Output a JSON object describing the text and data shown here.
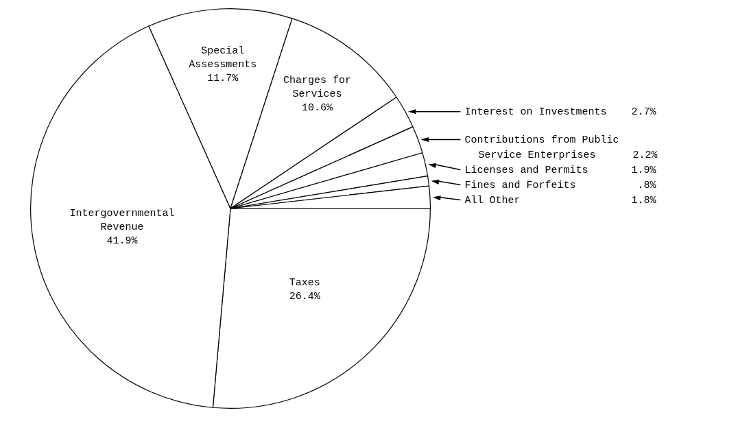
{
  "chart_data": {
    "type": "pie",
    "categories": [
      "Taxes",
      "Intergovernmental Revenue",
      "Special Assessments",
      "Charges for Services",
      "Interest on Investments",
      "Contributions from Public Service Enterprises",
      "Licenses and Permits",
      "Fines and Forfeits",
      "All Other"
    ],
    "values": [
      26.4,
      41.9,
      11.7,
      10.6,
      2.7,
      2.2,
      1.9,
      0.8,
      1.8
    ],
    "value_labels": [
      "26.4%",
      "41.9%",
      "11.7%",
      "10.6%",
      "2.7%",
      "2.2%",
      "1.9%",
      ".8%",
      "1.8%"
    ],
    "colors": [
      "#ffffff",
      "#ffffff",
      "#ffffff",
      "#ffffff",
      "#ffffff",
      "#ffffff",
      "#ffffff",
      "#ffffff",
      "#ffffff"
    ]
  }
}
